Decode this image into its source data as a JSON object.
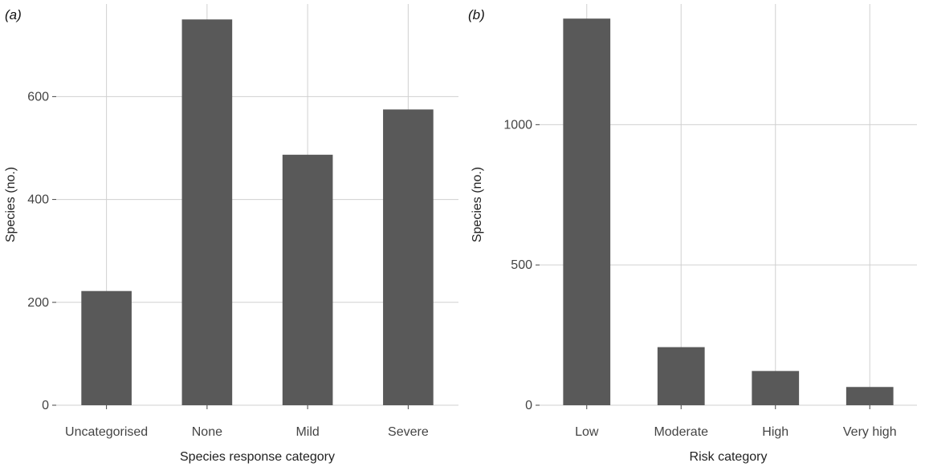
{
  "chart_data": [
    {
      "type": "bar",
      "panel_label": "(a)",
      "categories": [
        "Uncategorised",
        "None",
        "Mild",
        "Severe"
      ],
      "values": [
        222,
        750,
        487,
        575
      ],
      "xlabel": "Species response category",
      "ylabel": "Species (no.)",
      "ylim": [
        0,
        780
      ],
      "yticks": [
        0,
        200,
        400,
        600
      ],
      "grid": true
    },
    {
      "type": "bar",
      "panel_label": "(b)",
      "categories": [
        "Low",
        "Moderate",
        "High",
        "Very high"
      ],
      "values": [
        1378,
        207,
        122,
        65
      ],
      "xlabel": "Risk category",
      "ylabel": "Species (no.)",
      "ylim": [
        0,
        1430
      ],
      "yticks": [
        0,
        500,
        1000
      ],
      "grid": true
    }
  ]
}
